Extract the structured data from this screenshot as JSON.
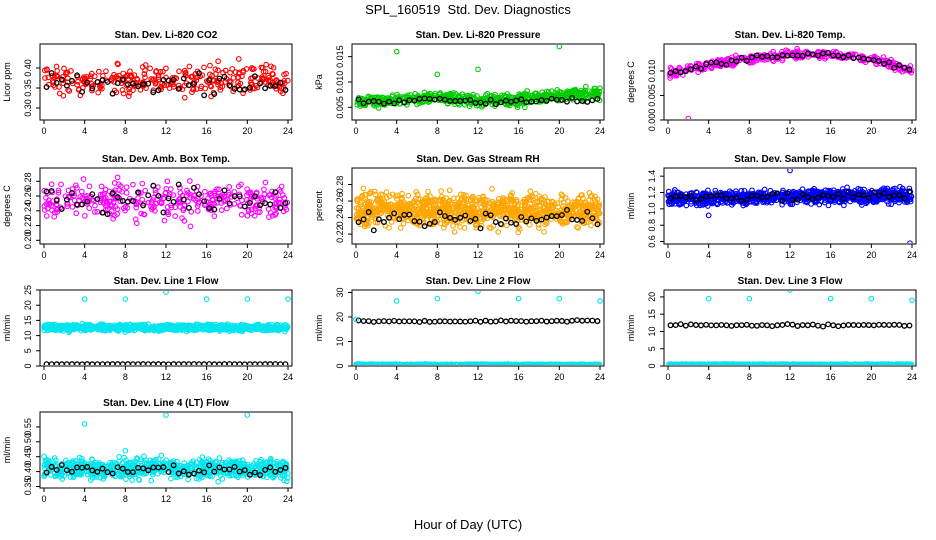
{
  "page": {
    "title": "SPL_160519  Std. Dev. Diagnostics",
    "xlabel": "Hour of Day (UTC)"
  },
  "colors": {
    "red": "#ff0000",
    "green": "#00cc00",
    "magenta": "#ff00ff",
    "orange": "#ffa500",
    "blue": "#0000ff",
    "cyan": "#00e5ee",
    "black": "#000000"
  },
  "chart_data": [
    {
      "type": "scatter",
      "title": "Stan. Dev. Li-820 CO2",
      "ylabel": "Licor ppm",
      "xlim": [
        0,
        24
      ],
      "ylim": [
        0.27,
        0.46
      ],
      "xticks": [
        0,
        4,
        8,
        12,
        16,
        20,
        24
      ],
      "yticks": [
        0.3,
        0.35,
        0.4
      ],
      "ytick_labels": [
        "0.30",
        "0.35",
        "0.40"
      ],
      "color": "#ff0000",
      "series": [
        {
          "profile": [
            [
              0,
              0.37
            ],
            [
              24,
              0.37
            ]
          ],
          "spread": 0.045,
          "n": 300,
          "color": "red"
        },
        {
          "profile": [
            [
              0,
              0.36
            ],
            [
              24,
              0.36
            ]
          ],
          "spread": 0.03,
          "n": 48,
          "color": "black"
        }
      ]
    },
    {
      "type": "scatter",
      "title": "Stan. Dev. Li-820 Pressure",
      "ylabel": "kPa",
      "xlim": [
        0,
        24
      ],
      "ylim": [
        0.0025,
        0.0175
      ],
      "xticks": [
        0,
        4,
        8,
        12,
        16,
        20,
        24
      ],
      "yticks": [
        0.005,
        0.01,
        0.015
      ],
      "ytick_labels": [
        "0.005",
        "0.010",
        "0.015"
      ],
      "color": "#00cc00",
      "series": [
        {
          "profile": [
            [
              0,
              0.006
            ],
            [
              4,
              0.0065
            ],
            [
              8,
              0.007
            ],
            [
              12,
              0.0063
            ],
            [
              16,
              0.0065
            ],
            [
              20,
              0.0072
            ],
            [
              24,
              0.0078
            ]
          ],
          "spread": 0.0014,
          "n": 600,
          "color": "green"
        },
        {
          "profile": [
            [
              0,
              0.006
            ],
            [
              4,
              0.0062
            ],
            [
              8,
              0.0068
            ],
            [
              12,
              0.006
            ],
            [
              16,
              0.006
            ],
            [
              20,
              0.0066
            ],
            [
              24,
              0.006
            ]
          ],
          "spread": 0.0006,
          "n": 48,
          "color": "black"
        },
        {
          "points": [
            [
              4,
              0.016
            ],
            [
              12,
              0.0125
            ],
            [
              20,
              0.017
            ],
            [
              24,
              0.0088
            ],
            [
              8,
              0.0115
            ]
          ],
          "color": "green"
        }
      ]
    },
    {
      "type": "scatter",
      "title": "Stan. Dev. Li-820 Temp.",
      "ylabel": "degrees C",
      "xlim": [
        0,
        24
      ],
      "ylim": [
        0,
        0.0155
      ],
      "xticks": [
        0,
        4,
        8,
        12,
        16,
        20,
        24
      ],
      "yticks": [
        0.0,
        0.005,
        0.01
      ],
      "ytick_labels": [
        "0.000",
        "0.005",
        "0.010"
      ],
      "color": "#ff00ff",
      "series": [
        {
          "profile": [
            [
              0,
              0.0095
            ],
            [
              4,
              0.0112
            ],
            [
              8,
              0.0124
            ],
            [
              12,
              0.0133
            ],
            [
              16,
              0.0134
            ],
            [
              20,
              0.0125
            ],
            [
              24,
              0.0102
            ]
          ],
          "spread": 0.0011,
          "n": 350,
          "color": "magenta"
        },
        {
          "profile": [
            [
              0,
              0.0095
            ],
            [
              4,
              0.0112
            ],
            [
              8,
              0.0124
            ],
            [
              12,
              0.0133
            ],
            [
              16,
              0.0134
            ],
            [
              20,
              0.0125
            ],
            [
              24,
              0.0102
            ]
          ],
          "spread": 0.0006,
          "n": 48,
          "color": "black"
        },
        {
          "points": [
            [
              2,
              0.0003
            ]
          ],
          "color": "magenta"
        }
      ]
    },
    {
      "type": "scatter",
      "title": "Stan. Dev. Amb. Box Temp.",
      "ylabel": "degrees C",
      "xlim": [
        0,
        24
      ],
      "ylim": [
        0.195,
        0.298
      ],
      "xticks": [
        0,
        4,
        8,
        12,
        16,
        20,
        24
      ],
      "yticks": [
        0.2,
        0.22,
        0.24,
        0.26,
        0.28
      ],
      "ytick_labels": [
        "0.20",
        "0.22",
        "0.24",
        "0.26",
        "0.28"
      ],
      "color": "#ff00ff",
      "series": [
        {
          "profile": [
            [
              0,
              0.255
            ],
            [
              24,
              0.252
            ]
          ],
          "spread": 0.028,
          "n": 330,
          "color": "magenta"
        },
        {
          "profile": [
            [
              0,
              0.255
            ],
            [
              24,
              0.252
            ]
          ],
          "spread": 0.022,
          "n": 48,
          "color": "black"
        }
      ]
    },
    {
      "type": "scatter",
      "title": "Stan. Dev. Gas Stream RH",
      "ylabel": "percent",
      "xlim": [
        0,
        24
      ],
      "ylim": [
        0.208,
        0.3
      ],
      "xticks": [
        0,
        4,
        8,
        12,
        16,
        20,
        24
      ],
      "yticks": [
        0.22,
        0.24,
        0.26,
        0.28
      ],
      "ytick_labels": [
        "0.22",
        "0.24",
        "0.26",
        "0.28"
      ],
      "color": "#ffa500",
      "series": [
        {
          "profile": [
            [
              0,
              0.25
            ],
            [
              24,
              0.248
            ]
          ],
          "spread": 0.023,
          "n": 900,
          "color": "orange"
        },
        {
          "profile": [
            [
              0,
              0.238
            ],
            [
              24,
              0.238
            ]
          ],
          "spread": 0.012,
          "n": 48,
          "color": "black"
        }
      ]
    },
    {
      "type": "scatter",
      "title": "Stan. Dev. Sample Flow",
      "ylabel": "ml/min",
      "xlim": [
        0,
        24
      ],
      "ylim": [
        0.57,
        1.5
      ],
      "xticks": [
        0,
        4,
        8,
        12,
        16,
        20,
        24
      ],
      "yticks": [
        0.6,
        0.8,
        1.0,
        1.2,
        1.4
      ],
      "ytick_labels": [
        "0.6",
        "0.8",
        "1.0",
        "1.2",
        "1.4"
      ],
      "color": "#0000ff",
      "series": [
        {
          "profile": [
            [
              0,
              1.13
            ],
            [
              24,
              1.16
            ]
          ],
          "spread": 0.1,
          "n": 900,
          "color": "blue"
        },
        {
          "profile": [
            [
              0,
              1.14
            ],
            [
              24,
              1.16
            ]
          ],
          "spread": 0.06,
          "n": 48,
          "color": "black"
        },
        {
          "points": [
            [
              23.8,
              0.58
            ],
            [
              12,
              1.47
            ],
            [
              4,
              0.92
            ]
          ],
          "color": "blue"
        }
      ]
    },
    {
      "type": "scatter",
      "title": "Stan. Dev. Line 1 Flow",
      "ylabel": "ml/min",
      "xlim": [
        0,
        24
      ],
      "ylim": [
        0,
        25
      ],
      "xticks": [
        0,
        4,
        8,
        12,
        16,
        20,
        24
      ],
      "yticks": [
        0,
        5,
        10,
        15,
        20,
        25
      ],
      "ytick_labels": [
        "0",
        "5",
        "10",
        "15",
        "20",
        "25"
      ],
      "color": "#00e5ee",
      "series": [
        {
          "profile": [
            [
              0,
              12.6
            ],
            [
              24,
              12.6
            ]
          ],
          "spread": 1.2,
          "n": 900,
          "color": "cyan"
        },
        {
          "profile": [
            [
              0,
              0.6
            ],
            [
              24,
              0.6
            ]
          ],
          "spread": 0.05,
          "n": 48,
          "color": "black"
        },
        {
          "points": [
            [
              4,
              22
            ],
            [
              8,
              22
            ],
            [
              12,
              24.3
            ],
            [
              16,
              22
            ],
            [
              20,
              22
            ],
            [
              24,
              22
            ]
          ],
          "color": "cyan"
        }
      ]
    },
    {
      "type": "scatter",
      "title": "Stan. Dev. Line 2 Flow",
      "ylabel": "ml/min",
      "xlim": [
        0,
        24
      ],
      "ylim": [
        0,
        31
      ],
      "xticks": [
        0,
        4,
        8,
        12,
        16,
        20,
        24
      ],
      "yticks": [
        0,
        10,
        20,
        30
      ],
      "ytick_labels": [
        "0",
        "10",
        "20",
        "30"
      ],
      "color": "#00e5ee",
      "series": [
        {
          "profile": [
            [
              0,
              0.5
            ],
            [
              24,
              0.5
            ]
          ],
          "spread": 0.3,
          "n": 700,
          "color": "cyan"
        },
        {
          "profile": [
            [
              0,
              18.2
            ],
            [
              24,
              18.4
            ]
          ],
          "spread": 0.4,
          "n": 48,
          "color": "black"
        },
        {
          "points": [
            [
              0,
              19
            ],
            [
              4,
              26.5
            ],
            [
              8,
              27.5
            ],
            [
              12,
              30.5
            ],
            [
              16,
              27.5
            ],
            [
              20,
              27.5
            ],
            [
              24,
              26.5
            ]
          ],
          "color": "cyan"
        }
      ]
    },
    {
      "type": "scatter",
      "title": "Stan. Dev. Line 3 Flow",
      "ylabel": "ml/min",
      "xlim": [
        0,
        24
      ],
      "ylim": [
        0,
        22
      ],
      "xticks": [
        0,
        4,
        8,
        12,
        16,
        20,
        24
      ],
      "yticks": [
        0,
        5,
        10,
        15,
        20
      ],
      "ytick_labels": [
        "0",
        "5",
        "10",
        "15",
        "20"
      ],
      "color": "#00e5ee",
      "series": [
        {
          "profile": [
            [
              0,
              0.4
            ],
            [
              24,
              0.4
            ]
          ],
          "spread": 0.2,
          "n": 700,
          "color": "cyan"
        },
        {
          "profile": [
            [
              0,
              11.8
            ],
            [
              24,
              11.8
            ]
          ],
          "spread": 0.4,
          "n": 48,
          "color": "black"
        },
        {
          "points": [
            [
              4,
              19.5
            ],
            [
              8,
              19.5
            ],
            [
              12,
              22
            ],
            [
              16,
              19.5
            ],
            [
              20,
              19.5
            ],
            [
              24,
              19
            ]
          ],
          "color": "cyan"
        }
      ]
    },
    {
      "type": "scatter",
      "title": "Stan. Dev. Line 4 (LT) Flow",
      "ylabel": "ml/min",
      "xlim": [
        0,
        24
      ],
      "ylim": [
        0.345,
        0.6
      ],
      "xticks": [
        0,
        4,
        8,
        12,
        16,
        20,
        24
      ],
      "yticks": [
        0.35,
        0.4,
        0.45,
        0.5,
        0.55
      ],
      "ytick_labels": [
        "0.35",
        "0.40",
        "0.45",
        "0.50",
        "0.55"
      ],
      "color": "#00e5ee",
      "series": [
        {
          "profile": [
            [
              0,
              0.41
            ],
            [
              24,
              0.41
            ]
          ],
          "spread": 0.04,
          "n": 700,
          "color": "cyan"
        },
        {
          "profile": [
            [
              0,
              0.405
            ],
            [
              24,
              0.41
            ]
          ],
          "spread": 0.025,
          "n": 48,
          "color": "black"
        },
        {
          "points": [
            [
              4,
              0.56
            ],
            [
              12,
              0.59
            ],
            [
              20,
              0.59
            ],
            [
              8,
              0.47
            ]
          ],
          "color": "cyan"
        }
      ]
    }
  ]
}
